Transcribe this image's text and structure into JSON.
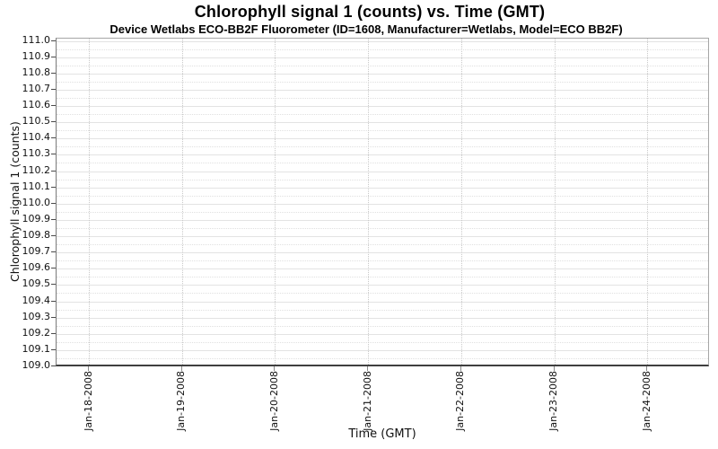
{
  "chart_data": {
    "type": "line",
    "title": "Chlorophyll signal 1 (counts) vs. Time (GMT)",
    "subtitle": "Device Wetlabs ECO-BB2F Fluorometer (ID=1608, Manufacturer=Wetlabs, Model=ECO BB2F)",
    "xlabel": "Time (GMT)",
    "ylabel": "Chlorophyll signal 1 (counts)",
    "ylim": [
      109.0,
      111.0
    ],
    "y_tick_step": 0.1,
    "y_tick_labels": [
      "111.0",
      "110.9",
      "110.8",
      "110.7",
      "110.6",
      "110.5",
      "110.4",
      "110.3",
      "110.2",
      "110.1",
      "110.0",
      "109.9",
      "109.8",
      "109.7",
      "109.6",
      "109.5",
      "109.4",
      "109.3",
      "109.2",
      "109.1",
      "109.0"
    ],
    "x_tick_labels": [
      "Jan-18-2008",
      "Jan-19-2008",
      "Jan-20-2008",
      "Jan-21-2008",
      "Jan-22-2008",
      "Jan-23-2008",
      "Jan-24-2008"
    ],
    "series": [],
    "legend": "none",
    "grid": {
      "horizontal_major": "solid",
      "horizontal_minor": "dotted",
      "vertical_major": "dotted"
    },
    "colors": {
      "background": "#ffffff",
      "text": "#000000",
      "grid_major": "#e3e3e3",
      "grid_minor": "#e0e0e0",
      "grid_vertical": "#c9c9c9",
      "plot_border": "#a6a6a6",
      "axis_bottom": "#3f3f3f",
      "y_tick": "#4a4a4a",
      "x_tick": "#8a8a8a"
    }
  }
}
